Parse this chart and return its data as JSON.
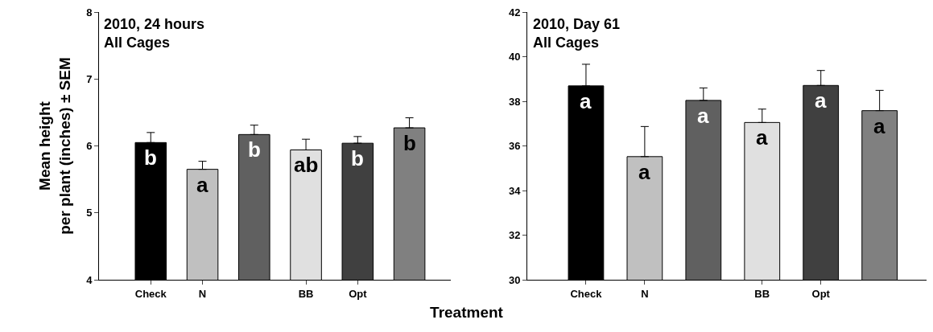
{
  "chart_data": [
    {
      "type": "bar",
      "title": "2010, 24 hours\nAll Cages",
      "ylabel": "Mean height\nper plant (inches) ± SEM",
      "xlabel": "Treatment",
      "categories": [
        "Check",
        "N",
        null,
        "BB",
        "Opt",
        null
      ],
      "values": [
        6.05,
        5.65,
        6.17,
        5.94,
        6.04,
        6.27
      ],
      "errors": [
        [
          6.05,
          6.2
        ],
        [
          5.65,
          5.77
        ],
        [
          6.17,
          6.31
        ],
        [
          5.94,
          6.1
        ],
        [
          6.04,
          6.14
        ],
        [
          6.27,
          6.42
        ]
      ],
      "colors": [
        "#000000",
        "#c0c0c0",
        "#606060",
        "#e0e0e0",
        "#404040",
        "#808080"
      ],
      "value_labels": [
        "b",
        "a",
        "b",
        "ab",
        "b",
        "b"
      ],
      "ylim": [
        4,
        8
      ],
      "yticks": [
        4,
        5,
        6,
        7,
        8
      ],
      "grid": false,
      "legend": false
    },
    {
      "type": "bar",
      "title": "2010, Day 61\nAll Cages",
      "categories": [
        "Check",
        "N",
        null,
        "BB",
        "Opt",
        null
      ],
      "values": [
        38.69,
        35.52,
        38.04,
        37.05,
        38.71,
        37.58
      ],
      "errors": [
        [
          38.69,
          39.66
        ],
        [
          35.52,
          36.87
        ],
        [
          38.04,
          38.6
        ],
        [
          37.05,
          37.65
        ],
        [
          38.71,
          39.38
        ],
        [
          37.58,
          38.49
        ]
      ],
      "colors": [
        "#000000",
        "#c0c0c0",
        "#606060",
        "#e0e0e0",
        "#404040",
        "#808080"
      ],
      "value_labels": [
        "a",
        "a",
        "a",
        "a",
        "a",
        "a"
      ],
      "ylim": [
        30,
        42
      ],
      "yticks": [
        30,
        32,
        34,
        36,
        38,
        40,
        42
      ],
      "grid": false,
      "legend": false
    }
  ]
}
